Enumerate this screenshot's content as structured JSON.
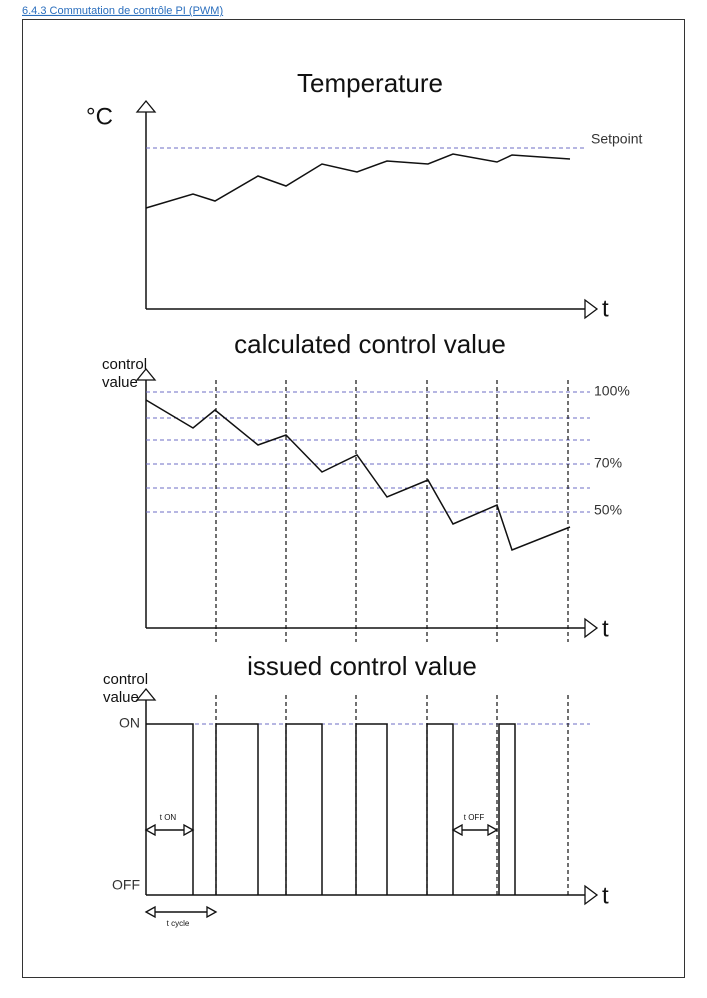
{
  "heading": "6.4.3 Commutation de contrôle PI (PWM)",
  "panels": [
    {
      "title": "Temperature",
      "y_label": [
        "°C"
      ],
      "x_label": "t",
      "labels": [
        "Setpoint"
      ]
    },
    {
      "title": "calculated control value",
      "y_label": [
        "control",
        "value"
      ],
      "x_label": "t",
      "labels": [
        "100%",
        "70%",
        "50%"
      ]
    },
    {
      "title": "issued control value",
      "y_label": [
        "control",
        "value"
      ],
      "x_label": "t",
      "labels": [
        "ON",
        "OFF",
        "t ON",
        "t OFF",
        "t cycle"
      ]
    }
  ]
}
